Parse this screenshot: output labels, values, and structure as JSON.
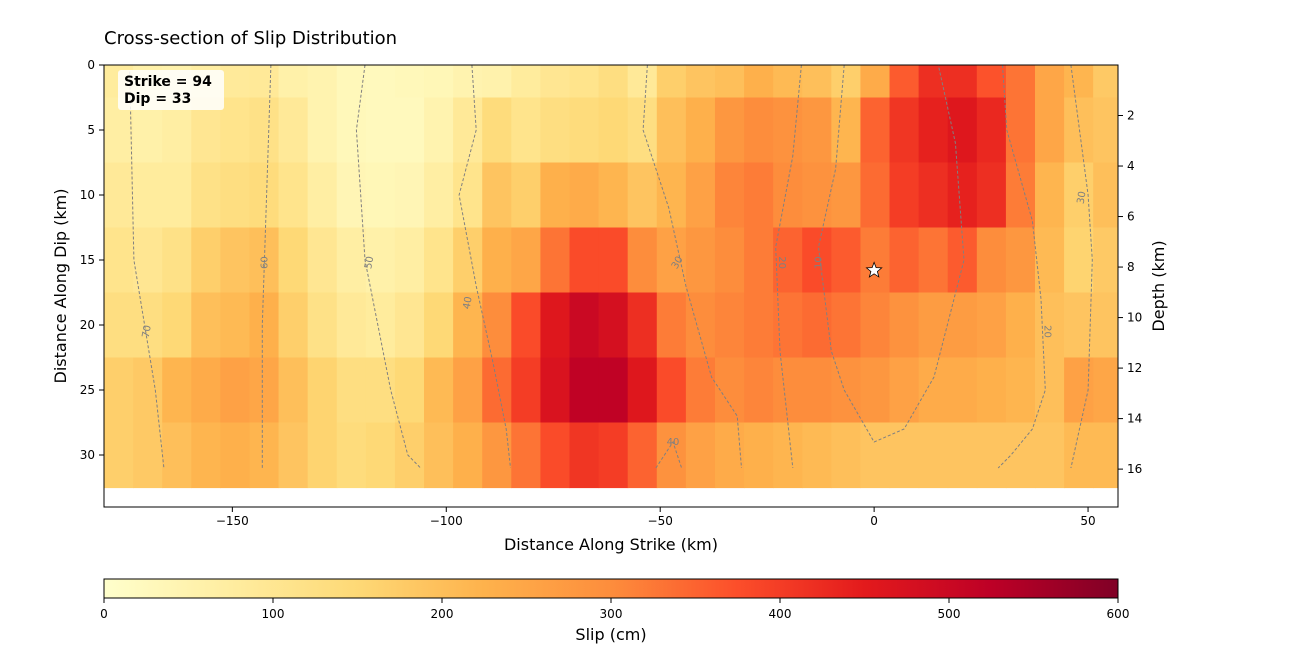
{
  "chart_data": {
    "type": "heatmap",
    "title": "Cross-section of Slip Distribution",
    "xlabel": "Distance Along Strike (km)",
    "ylabel": "Distance Along Dip (km)",
    "y2label": "Depth (km)",
    "colorbar_label": "Slip (cm)",
    "colormap": "YlOrRd",
    "annotation": [
      "Strike = 94",
      "Dip = 33"
    ],
    "xlim": [
      -180,
      57
    ],
    "ylim": [
      34,
      0
    ],
    "y2lim": [
      17.5,
      0
    ],
    "clim": [
      0,
      600
    ],
    "x_ticks": [
      -150,
      -100,
      -50,
      0,
      50
    ],
    "y_ticks": [
      0,
      5,
      10,
      15,
      20,
      25,
      30
    ],
    "y2_ticks": [
      2,
      4,
      6,
      8,
      10,
      12,
      14,
      16
    ],
    "colorbar_ticks": [
      0,
      100,
      200,
      300,
      400,
      500,
      600
    ],
    "hypocenter": {
      "x": 0,
      "y": 15.8,
      "marker": "star"
    },
    "grid_x_start": -180,
    "grid_dx": 6.8,
    "grid_y_edges": [
      0,
      2.5,
      7.5,
      12.5,
      17.5,
      22.5,
      27.5,
      32.5,
      34
    ],
    "slip": [
      [
        80,
        60,
        55,
        70,
        85,
        90,
        60,
        50,
        30,
        25,
        30,
        35,
        50,
        55,
        80,
        100,
        110,
        130,
        90,
        170,
        190,
        200,
        230,
        210,
        200,
        170,
        240,
        360,
        420,
        420,
        370,
        330,
        250,
        220,
        180,
        130
      ],
      [
        70,
        60,
        70,
        100,
        110,
        120,
        90,
        50,
        30,
        25,
        25,
        50,
        90,
        140,
        110,
        130,
        140,
        150,
        130,
        200,
        230,
        280,
        300,
        290,
        280,
        220,
        350,
        410,
        440,
        460,
        430,
        330,
        250,
        200,
        190,
        130
      ],
      [
        90,
        80,
        80,
        120,
        130,
        140,
        110,
        70,
        40,
        35,
        40,
        70,
        110,
        190,
        170,
        230,
        240,
        220,
        190,
        220,
        260,
        310,
        320,
        300,
        290,
        280,
        340,
        400,
        420,
        440,
        420,
        320,
        220,
        170,
        200,
        120
      ],
      [
        110,
        100,
        120,
        170,
        190,
        200,
        150,
        100,
        70,
        60,
        70,
        110,
        170,
        230,
        250,
        330,
        380,
        380,
        300,
        260,
        280,
        300,
        320,
        350,
        380,
        360,
        320,
        350,
        330,
        360,
        300,
        280,
        210,
        160,
        180,
        130
      ],
      [
        130,
        130,
        150,
        200,
        210,
        230,
        170,
        120,
        90,
        80,
        100,
        150,
        220,
        300,
        380,
        460,
        500,
        480,
        420,
        320,
        300,
        310,
        320,
        330,
        340,
        330,
        310,
        290,
        270,
        270,
        260,
        230,
        200,
        190,
        190,
        140
      ],
      [
        170,
        180,
        220,
        240,
        260,
        250,
        200,
        160,
        130,
        130,
        150,
        210,
        260,
        340,
        400,
        470,
        520,
        520,
        460,
        380,
        320,
        300,
        310,
        300,
        300,
        290,
        280,
        260,
        240,
        240,
        230,
        220,
        200,
        260,
        250,
        180
      ],
      [
        170,
        180,
        200,
        220,
        230,
        220,
        190,
        160,
        140,
        150,
        170,
        200,
        230,
        280,
        330,
        380,
        410,
        400,
        350,
        290,
        260,
        240,
        230,
        220,
        210,
        200,
        190,
        190,
        190,
        190,
        190,
        190,
        190,
        210,
        210,
        180
      ]
    ],
    "contours": [
      {
        "label": "70",
        "points": [
          [
            -174,
            0.5
          ],
          [
            -173,
            15
          ],
          [
            -168,
            25
          ],
          [
            -166,
            31
          ]
        ]
      },
      {
        "label": "60",
        "points": [
          [
            -141,
            0
          ],
          [
            -142,
            10
          ],
          [
            -143,
            20
          ],
          [
            -143,
            31
          ]
        ]
      },
      {
        "label": "50",
        "points": [
          [
            -119,
            0
          ],
          [
            -121,
            5
          ],
          [
            -119,
            15
          ],
          [
            -113,
            25
          ],
          [
            -109,
            30
          ],
          [
            -106,
            31
          ]
        ]
      },
      {
        "label": "40",
        "points": [
          [
            -94,
            0
          ],
          [
            -93,
            5
          ],
          [
            -97,
            10
          ],
          [
            -93,
            17
          ],
          [
            -89,
            23
          ],
          [
            -86,
            28
          ],
          [
            -85,
            31
          ]
        ]
      },
      {
        "label": "30",
        "points": [
          [
            -53,
            0
          ],
          [
            -54,
            5
          ],
          [
            -48,
            11
          ],
          [
            -44,
            17
          ],
          [
            -38,
            24
          ],
          [
            -32,
            27
          ],
          [
            -31,
            31
          ]
        ]
      },
      {
        "label": "20",
        "points": [
          [
            -17,
            0
          ],
          [
            -19,
            7
          ],
          [
            -23,
            14
          ],
          [
            -22,
            22
          ],
          [
            -19,
            31
          ]
        ]
      },
      {
        "label": "10",
        "points": [
          [
            -7,
            0
          ],
          [
            -9,
            8
          ],
          [
            -13,
            14
          ],
          [
            -10,
            22
          ],
          [
            -7,
            25
          ],
          [
            0,
            29
          ],
          [
            7,
            28
          ],
          [
            14,
            24
          ],
          [
            21,
            15
          ],
          [
            19,
            6
          ],
          [
            15,
            0
          ]
        ]
      },
      {
        "label": "20",
        "points": [
          [
            30,
            0
          ],
          [
            31,
            5
          ],
          [
            37,
            12
          ],
          [
            39,
            18
          ],
          [
            40,
            25
          ],
          [
            37,
            28
          ],
          [
            32,
            30
          ],
          [
            29,
            31
          ]
        ]
      },
      {
        "label": "30",
        "points": [
          [
            46,
            0
          ],
          [
            48,
            5
          ],
          [
            50,
            10
          ],
          [
            51,
            15
          ],
          [
            50,
            25
          ],
          [
            48,
            28
          ],
          [
            46,
            31
          ]
        ]
      },
      {
        "label": "40",
        "points": [
          [
            -51,
            31
          ],
          [
            -47,
            29
          ],
          [
            -45,
            31
          ]
        ]
      }
    ],
    "contour_labels": [
      {
        "text": "70",
        "x": -170,
        "y": 20.5,
        "rot": -80
      },
      {
        "text": "60",
        "x": -142.5,
        "y": 15.2,
        "rot": -90
      },
      {
        "text": "50",
        "x": -118,
        "y": 15.2,
        "rot": -80
      },
      {
        "text": "40",
        "x": -95,
        "y": 18.3,
        "rot": -80
      },
      {
        "text": "30",
        "x": -46,
        "y": 15.2,
        "rot": -60
      },
      {
        "text": "20",
        "x": -21.5,
        "y": 15.2,
        "rot": 90
      },
      {
        "text": "10",
        "x": -13,
        "y": 15.2,
        "rot": -90
      },
      {
        "text": "20",
        "x": 40.5,
        "y": 20.5,
        "rot": 90
      },
      {
        "text": "30",
        "x": 48.5,
        "y": 10.2,
        "rot": -80
      },
      {
        "text": "40",
        "x": -47,
        "y": 29,
        "rot": 0
      }
    ]
  }
}
